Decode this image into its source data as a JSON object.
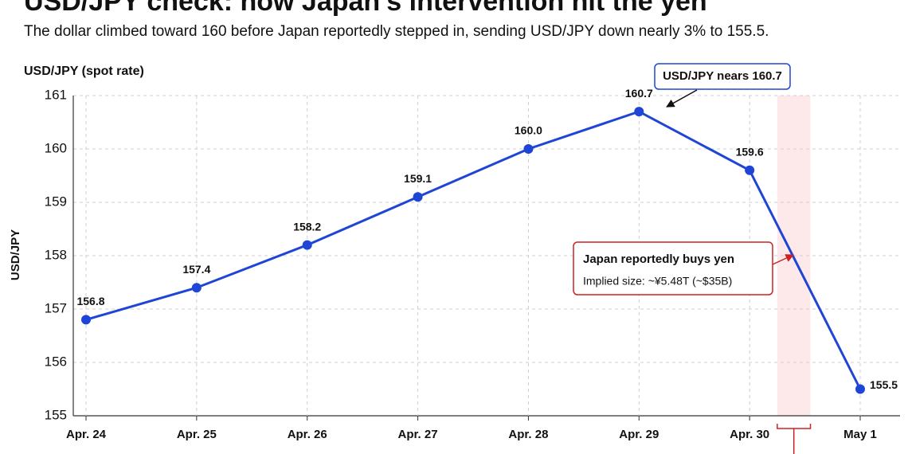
{
  "chart_data": {
    "type": "line",
    "title": "USD/JPY check: how Japan's intervention hit the yen",
    "subtitle": "The dollar climbed toward 160 before Japan reportedly stepped in, sending USD/JPY down nearly 3% to 155.5.",
    "axis_caption": "USD/JPY (spot rate)",
    "y_label": "USD/JPY",
    "categories": [
      "Apr. 24",
      "Apr. 25",
      "Apr. 26",
      "Apr. 27",
      "Apr. 28",
      "Apr. 29",
      "Apr. 30",
      "May 1"
    ],
    "series": [
      {
        "name": "USD/JPY",
        "color": "#1f45d6",
        "values": [
          156.8,
          157.4,
          158.2,
          159.1,
          160.0,
          160.7,
          159.6,
          155.5
        ],
        "value_labels": [
          "156.8",
          "157.4",
          "158.2",
          "159.1",
          "160.0",
          "160.7",
          "159.6",
          "155.5"
        ]
      }
    ],
    "ylim": [
      155,
      161
    ],
    "yticks": [
      155,
      156,
      157,
      158,
      159,
      160,
      161
    ],
    "grid": true,
    "annotations": [
      {
        "text": "USD/JPY nears 160.7",
        "color": "#1f45d6"
      },
      {
        "text": "Japan reportedly buys yen",
        "detail": "Implied size: ~¥5.48T (~$35B)",
        "color": "#cc2222"
      }
    ]
  }
}
